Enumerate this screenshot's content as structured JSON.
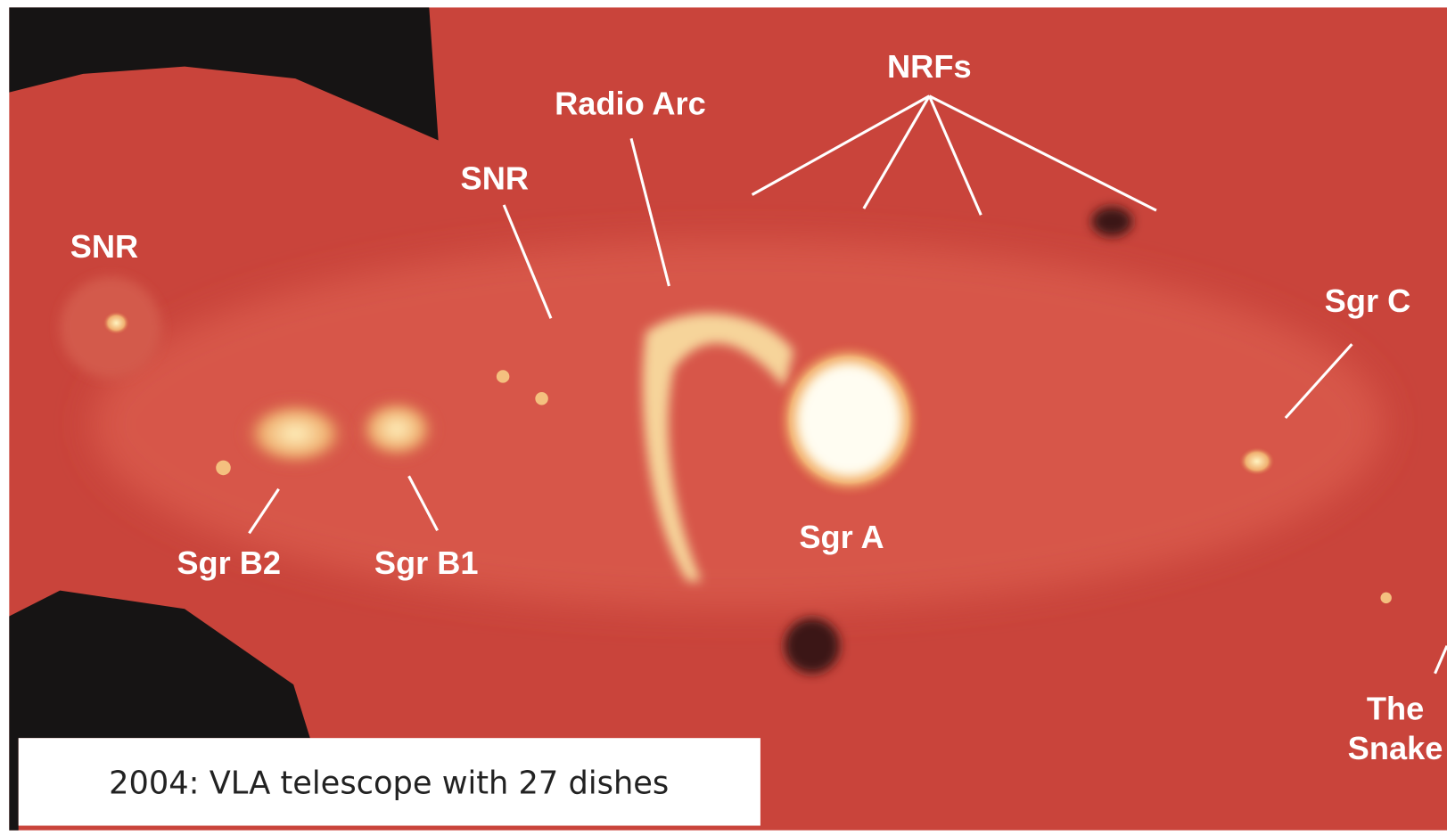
{
  "labels": {
    "snr_left": "SNR",
    "snr_mid": "SNR",
    "radio_arc": "Radio Arc",
    "nrfs": "NRFs",
    "sgr_c": "Sgr C",
    "sgr_b2": "Sgr B2",
    "sgr_b1": "Sgr B1",
    "sgr_a": "Sgr A",
    "the_snake": [
      "The",
      "Snake"
    ]
  },
  "caption": "2004: VLA telescope with 27 dishes"
}
